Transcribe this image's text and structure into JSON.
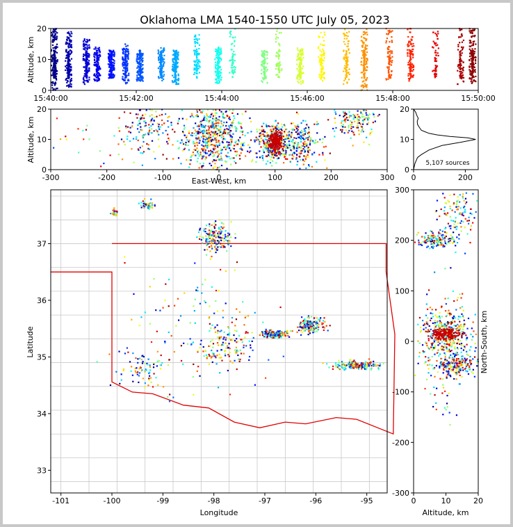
{
  "chart_data": [
    {
      "id": "time-height",
      "type": "scatter",
      "title": "Oklahoma LMA 1540-1550 UTC July 05, 2023",
      "xlabel": "",
      "ylabel": "Altitude, km",
      "x_ticks": [
        "15:40:00",
        "15:42:00",
        "15:44:00",
        "15:46:00",
        "15:48:00",
        "15:50:00"
      ],
      "xlim": [
        0,
        600
      ],
      "ylim": [
        0,
        20
      ],
      "y_ticks": [
        0,
        10,
        20
      ],
      "colormap": "jet (by time)",
      "columns": [
        {
          "t": 5,
          "lo": 0,
          "hi": 20,
          "density": 8
        },
        {
          "t": 25,
          "lo": 1,
          "hi": 19,
          "density": 7
        },
        {
          "t": 50,
          "lo": 2,
          "hi": 17,
          "density": 6
        },
        {
          "t": 65,
          "lo": 3,
          "hi": 14,
          "density": 5
        },
        {
          "t": 85,
          "lo": 4,
          "hi": 13,
          "density": 6
        },
        {
          "t": 105,
          "lo": 2,
          "hi": 15,
          "density": 5
        },
        {
          "t": 125,
          "lo": 3,
          "hi": 12,
          "density": 6
        },
        {
          "t": 155,
          "lo": 3,
          "hi": 14,
          "density": 4
        },
        {
          "t": 175,
          "lo": 2,
          "hi": 13,
          "density": 6
        },
        {
          "t": 205,
          "lo": 5,
          "hi": 18,
          "density": 3
        },
        {
          "t": 235,
          "lo": 2,
          "hi": 14,
          "density": 5
        },
        {
          "t": 255,
          "lo": 5,
          "hi": 20,
          "density": 2
        },
        {
          "t": 300,
          "lo": 2,
          "hi": 13,
          "density": 3
        },
        {
          "t": 320,
          "lo": 5,
          "hi": 20,
          "density": 2
        },
        {
          "t": 350,
          "lo": 2,
          "hi": 14,
          "density": 4
        },
        {
          "t": 380,
          "lo": 3,
          "hi": 19,
          "density": 3
        },
        {
          "t": 415,
          "lo": 2,
          "hi": 20,
          "density": 3
        },
        {
          "t": 440,
          "lo": 0,
          "hi": 20,
          "density": 5
        },
        {
          "t": 475,
          "lo": 3,
          "hi": 20,
          "density": 3
        },
        {
          "t": 505,
          "lo": 3,
          "hi": 20,
          "density": 4
        },
        {
          "t": 540,
          "lo": 4,
          "hi": 20,
          "density": 2
        },
        {
          "t": 575,
          "lo": 2,
          "hi": 20,
          "density": 3
        },
        {
          "t": 592,
          "lo": 2,
          "hi": 20,
          "density": 6
        }
      ]
    },
    {
      "id": "ew-altitude",
      "type": "scatter",
      "xlabel": "East-West, km",
      "ylabel": "Altitude, km",
      "xlim": [
        -300,
        300
      ],
      "ylim": [
        0,
        20
      ],
      "x_ticks": [
        -300,
        -200,
        -100,
        0,
        100,
        200,
        300
      ],
      "y_ticks": [
        0,
        10,
        20
      ],
      "clusters": [
        {
          "x": -135,
          "y": 14,
          "sx": 20,
          "sy": 4,
          "n": 120
        },
        {
          "x": -25,
          "y": 11,
          "sx": 25,
          "sy": 6,
          "n": 300
        },
        {
          "x": 5,
          "y": 11,
          "sx": 20,
          "sy": 6,
          "n": 260
        },
        {
          "x": 100,
          "y": 9,
          "sx": 14,
          "sy": 3,
          "n": 320
        },
        {
          "x": 148,
          "y": 9,
          "sx": 14,
          "sy": 4,
          "n": 180
        },
        {
          "x": 245,
          "y": 17,
          "sx": 18,
          "sy": 3,
          "n": 160
        },
        {
          "x": 0,
          "y": 8,
          "sx": 150,
          "sy": 6,
          "n": 200
        }
      ]
    },
    {
      "id": "altitude-histogram",
      "type": "line",
      "xlim": [
        0,
        250
      ],
      "ylim": [
        0,
        20
      ],
      "x_ticks": [
        0,
        200
      ],
      "y_ticks": [
        0,
        10,
        20
      ],
      "annotation": "5,107 sources",
      "x": [
        0,
        5,
        15,
        30,
        60,
        110,
        180,
        240,
        210,
        140,
        90,
        60,
        45,
        30,
        22,
        15,
        14,
        18,
        12,
        8,
        0
      ],
      "y": [
        0,
        2,
        4,
        5,
        6.5,
        8,
        9,
        10,
        10.5,
        11,
        11.5,
        12,
        12.5,
        13,
        14,
        15,
        16,
        17,
        18,
        19,
        20
      ]
    },
    {
      "id": "plan-view",
      "type": "scatter",
      "xlabel": "Longitude",
      "ylabel": "Latitude",
      "xlim": [
        -101.2,
        -94.6
      ],
      "ylim": [
        32.6,
        37.95
      ],
      "x_ticks": [
        -101,
        -100,
        -99,
        -98,
        -97,
        -96,
        -95
      ],
      "y_ticks": [
        33,
        34,
        35,
        36,
        37
      ],
      "ns_ticks": [
        300,
        200,
        100,
        0,
        -100,
        -200,
        -300
      ],
      "ns_label": "North-South, km",
      "clusters": [
        {
          "lon": -97.95,
          "lat": 37.1,
          "slon": 0.15,
          "slat": 0.12,
          "n": 180
        },
        {
          "lon": -99.3,
          "lat": 37.7,
          "slon": 0.08,
          "slat": 0.04,
          "n": 40
        },
        {
          "lon": -99.95,
          "lat": 37.55,
          "slon": 0.04,
          "slat": 0.04,
          "n": 20
        },
        {
          "lon": -96.8,
          "lat": 35.4,
          "slon": 0.12,
          "slat": 0.03,
          "n": 200
        },
        {
          "lon": -96.1,
          "lat": 35.55,
          "slon": 0.12,
          "slat": 0.08,
          "n": 160
        },
        {
          "lon": -95.2,
          "lat": 34.85,
          "slon": 0.25,
          "slat": 0.04,
          "n": 180
        },
        {
          "lon": -97.8,
          "lat": 35.2,
          "slon": 0.3,
          "slat": 0.2,
          "n": 140
        },
        {
          "lon": -99.4,
          "lat": 34.8,
          "slon": 0.3,
          "slat": 0.15,
          "n": 80
        },
        {
          "lon": -98.3,
          "lat": 35.5,
          "slon": 0.7,
          "slat": 0.6,
          "n": 120
        }
      ]
    },
    {
      "id": "altitude-ns",
      "type": "scatter",
      "xlabel": "Altitude, km",
      "ylabel": "North-South, km",
      "xlim": [
        0,
        20
      ],
      "ylim": [
        -300,
        300
      ],
      "x_ticks": [
        0,
        10,
        20
      ],
      "y_ticks": [
        300,
        200,
        100,
        0,
        -100,
        -200,
        -300
      ],
      "clusters": [
        {
          "x": 7,
          "y": 200,
          "sx": 3,
          "sy": 8,
          "n": 140
        },
        {
          "x": 14,
          "y": 250,
          "sx": 3,
          "sy": 25,
          "n": 120
        },
        {
          "x": 10,
          "y": 15,
          "sx": 4,
          "sy": 20,
          "n": 320
        },
        {
          "x": 13,
          "y": -45,
          "sx": 4,
          "sy": 10,
          "n": 200
        },
        {
          "x": 9,
          "y": -20,
          "sx": 4,
          "sy": 60,
          "n": 160
        }
      ]
    }
  ]
}
